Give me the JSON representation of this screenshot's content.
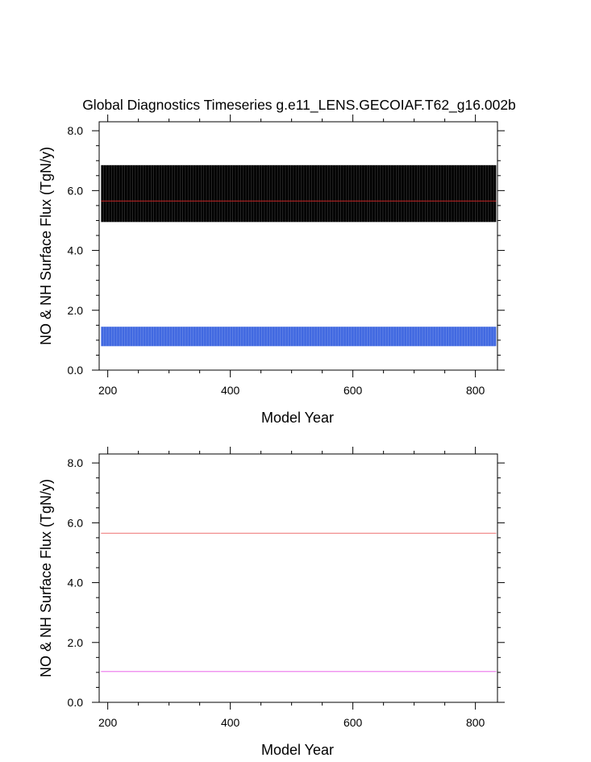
{
  "title": "Global Diagnostics Timeseries g.e11_LENS.GECOIAF.T62_g16.002b",
  "colors": {
    "nox_band": "#000000",
    "nhy_band": "#4169e1",
    "nox_mean": "#b22222",
    "nhy_mean": "#ee82ee",
    "nox_ref": "#f08080",
    "nhy_ref": "#ee82ee"
  },
  "chart_data": [
    {
      "type": "line",
      "xlabel": "Model Year",
      "ylabel": "NO & NH Surface Flux (TgN/y)",
      "xlim": [
        186,
        836
      ],
      "ylim": [
        0,
        8.3
      ],
      "xticks": [
        200,
        400,
        600,
        800
      ],
      "xtick_labels": [
        "200",
        "400",
        "600",
        "800"
      ],
      "yticks": [
        0,
        2,
        4,
        6,
        8
      ],
      "ytick_labels": [
        "0.0",
        "2.0",
        "4.0",
        "6.0",
        "8.0"
      ],
      "grid": false,
      "series": [
        {
          "x_range": [
            189,
            834
          ],
          "annual_cycle": true,
          "min": 4.95,
          "max": 6.85,
          "mean": 5.65,
          "color": "#000000"
        },
        {
          "x_range": [
            189,
            834
          ],
          "annual_cycle": true,
          "min": 0.8,
          "max": 1.45,
          "mean": 1.02,
          "color": "#4169e1"
        },
        {
          "x_range": [
            189,
            834
          ],
          "values": [
            5.65,
            5.65
          ],
          "color": "#b22222"
        }
      ]
    },
    {
      "type": "line",
      "xlabel": "Model Year",
      "ylabel": "NO & NH Surface Flux (TgN/y)",
      "xlim": [
        186,
        836
      ],
      "ylim": [
        0,
        8.3
      ],
      "xticks": [
        200,
        400,
        600,
        800
      ],
      "xtick_labels": [
        "200",
        "400",
        "600",
        "800"
      ],
      "yticks": [
        0,
        2,
        4,
        6,
        8
      ],
      "ytick_labels": [
        "0.0",
        "2.0",
        "4.0",
        "6.0",
        "8.0"
      ],
      "grid": false,
      "series": [
        {
          "x_range": [
            189,
            834
          ],
          "values": [
            5.65,
            5.65
          ],
          "color": "#f08080"
        },
        {
          "x_range": [
            189,
            834
          ],
          "values": [
            1.03,
            1.03
          ],
          "color": "#ee82ee"
        }
      ]
    }
  ]
}
